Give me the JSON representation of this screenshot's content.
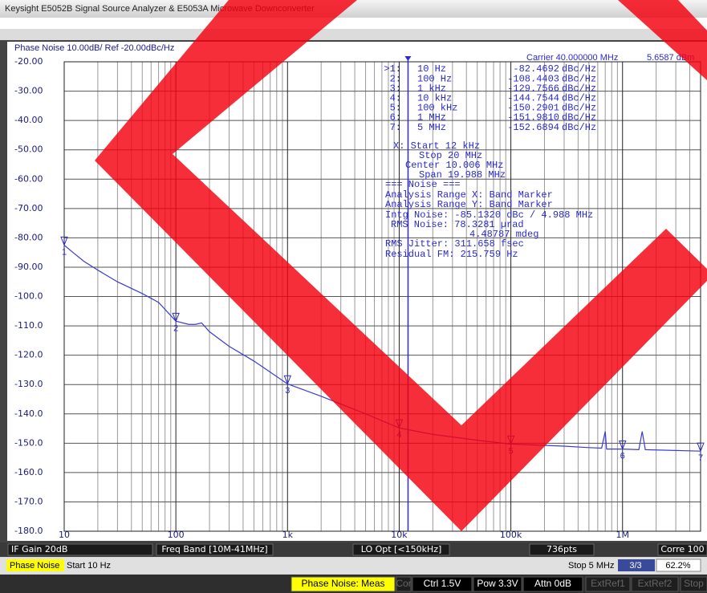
{
  "window_title": "Keysight E5052B Signal Source Analyzer & E5053A Microwave Downconverter",
  "chart_data": {
    "type": "line",
    "title": "Phase Noise 10.00dB/ Ref -20.00dBc/Hz",
    "carrier": "Carrier 40.000000 MHz",
    "power": "5.6587 dBm",
    "log_x": true,
    "grid": true,
    "xlim": [
      10,
      5000000
    ],
    "ylim": [
      -180,
      -20
    ],
    "xticks": [
      10,
      100,
      {
        "value": 1000,
        "label": "1k"
      },
      {
        "value": 10000,
        "label": "10k"
      },
      {
        "value": 100000,
        "label": "100k"
      },
      {
        "value": 1000000,
        "label": "1M"
      }
    ],
    "yticks": [
      {
        "value": -20,
        "label": "-20.00"
      },
      {
        "value": -30,
        "label": "-30.00"
      },
      {
        "value": -40,
        "label": "-40.00"
      },
      {
        "value": -50,
        "label": "-50.00"
      },
      {
        "value": -60,
        "label": "-60.00"
      },
      {
        "value": -70,
        "label": "-70.00"
      },
      {
        "value": -80,
        "label": "-80.00"
      },
      {
        "value": -90,
        "label": "-90.00"
      },
      {
        "value": -100,
        "label": "-100.0"
      },
      {
        "value": -110,
        "label": "-110.0"
      },
      {
        "value": -120,
        "label": "-120.0"
      },
      {
        "value": -130,
        "label": "-130.0"
      },
      {
        "value": -140,
        "label": "-140.0"
      },
      {
        "value": -150,
        "label": "-150.0"
      },
      {
        "value": -160,
        "label": "-160.0"
      },
      {
        "value": -170,
        "label": "-170.0"
      },
      {
        "value": -180,
        "label": "-180.0"
      }
    ],
    "series": [
      {
        "color": "#3a3ad8",
        "x": [
          10,
          12,
          15,
          20,
          30,
          50,
          70,
          100,
          130,
          150,
          170,
          200,
          300,
          500,
          1000,
          2000,
          5000,
          10000,
          20000,
          50000,
          100000,
          300000,
          500000,
          650000,
          700000,
          720000,
          1000000,
          1400000,
          1500000,
          1600000,
          2000000,
          5000000
        ],
        "values": [
          -82.5,
          -85,
          -88,
          -91,
          -95,
          -99,
          -102,
          -108.4,
          -109.5,
          -109.5,
          -109,
          -112,
          -117,
          -122,
          -129.8,
          -134,
          -140,
          -144.8,
          -147,
          -149,
          -150.3,
          -151,
          -151.5,
          -151.7,
          -146,
          -152,
          -152,
          -152.2,
          -146,
          -152.2,
          -152.3,
          -152.7
        ]
      }
    ],
    "markers": [
      {
        "name": "1",
        "x": 10,
        "value": -82.4692
      },
      {
        "name": "2",
        "x": 100,
        "value": -108.4403
      },
      {
        "name": "3",
        "x": 1000,
        "value": -129.7566
      },
      {
        "name": "4",
        "x": 10000,
        "value": -144.7544
      },
      {
        "name": "5",
        "x": 100000,
        "value": -150.2901
      },
      {
        "name": "6",
        "x": 1000000,
        "value": -151.981
      },
      {
        "name": "7",
        "x": 5000000,
        "value": -152.6894
      }
    ],
    "band_marker_x": 12000,
    "readout": {
      "markers": [
        [
          ">1:",
          "10 Hz",
          "-82.4692",
          "dBc/Hz"
        ],
        [
          "2:",
          "100 Hz",
          "-108.4403",
          "dBc/Hz"
        ],
        [
          "3:",
          "1 kHz",
          "-129.7566",
          "dBc/Hz"
        ],
        [
          "4:",
          "10 kHz",
          "-144.7544",
          "dBc/Hz"
        ],
        [
          "5:",
          "100 kHz",
          "-150.2901",
          "dBc/Hz"
        ],
        [
          "6:",
          "1 MHz",
          "-151.9810",
          "dBc/Hz"
        ],
        [
          "7:",
          "5 MHz",
          "-152.6894",
          "dBc/Hz"
        ]
      ],
      "lines": [
        "X: Start 12 kHz",
        "Stop 20 MHz",
        "Center 10.006 MHz",
        "Span 19.988 MHz",
        "=== Noise ===",
        "Analysis Range X: Band Marker",
        "Analysis Range Y: Band Marker",
        "Intg Noise: -85.1320 dBc / 4.988 MHz",
        "RMS Noise: 78.3281 µrad",
        "4.48787 mdeg",
        "RMS Jitter: 311.658 fsec",
        "Residual FM: 215.759 Hz"
      ]
    }
  },
  "status": {
    "info": [
      "IF Gain 20dB",
      "Freq Band [10M-41MHz]",
      "LO Opt [<150kHz]",
      "736pts",
      "Corre 100"
    ],
    "mode": "Phase Noise",
    "start": "Start 10 Hz",
    "stop": "Stop 5 MHz",
    "page": "3/3",
    "percent": "62.2%",
    "indicators": [
      "Phase Noise: Meas",
      "Cor",
      "Ctrl 1.5V",
      "Pow 3.3V",
      "Attn 0dB",
      "ExtRef1",
      "ExtRef2",
      "Stop"
    ]
  }
}
